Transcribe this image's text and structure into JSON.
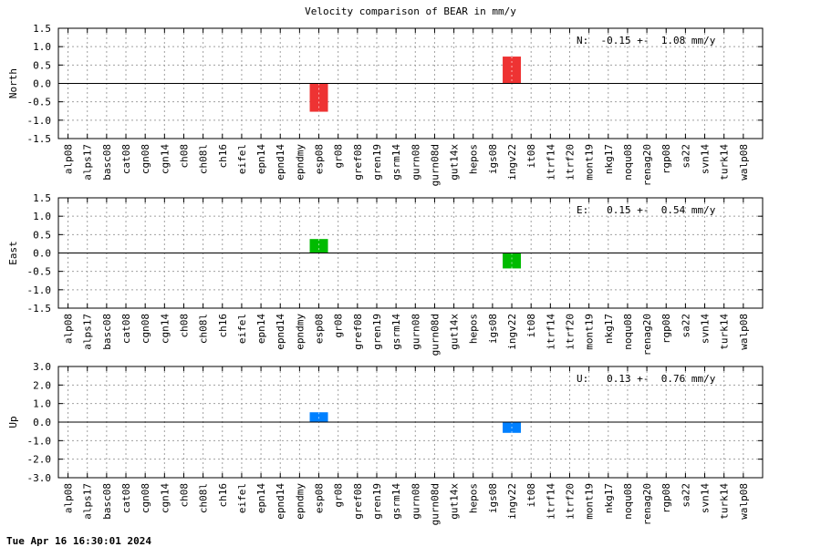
{
  "page": {
    "title": "Velocity comparison of BEAR in mm/y",
    "timestamp": "Tue Apr 16 16:30:01 2024"
  },
  "chart_data": [
    {
      "type": "bar",
      "ylabel": "North",
      "ylim": [
        -1.5,
        1.5
      ],
      "yticks": [
        "1.5",
        "1.0",
        "0.5",
        "0.0",
        "-0.5",
        "-1.0",
        "-1.5"
      ],
      "annotation": "N:  -0.15 +-  1.08 mm/y",
      "color": "#ee3333",
      "grid": true,
      "categories": [
        "alp08",
        "alps17",
        "basc08",
        "cat08",
        "cgn08",
        "cgn14",
        "ch08",
        "ch08l",
        "ch16",
        "eifel",
        "epn14",
        "epnd14",
        "epndmy",
        "esp08",
        "gr08",
        "gref08",
        "gren19",
        "gsrm14",
        "gurn08",
        "gurn08d",
        "gut14x",
        "hepos",
        "igs08",
        "ingv22",
        "it08",
        "itrf14",
        "itrf20",
        "mont19",
        "nkg17",
        "noqu08",
        "renag20",
        "rgp08",
        "sa22",
        "svn14",
        "turk14",
        "walp08"
      ],
      "values": [
        null,
        null,
        null,
        null,
        null,
        null,
        null,
        null,
        null,
        null,
        null,
        null,
        null,
        -0.77,
        null,
        null,
        null,
        null,
        null,
        null,
        null,
        null,
        null,
        0.73,
        null,
        null,
        null,
        null,
        null,
        null,
        null,
        null,
        null,
        null,
        null,
        null
      ]
    },
    {
      "type": "bar",
      "ylabel": "East",
      "ylim": [
        -1.5,
        1.5
      ],
      "yticks": [
        "1.5",
        "1.0",
        "0.5",
        "0.0",
        "-0.5",
        "-1.0",
        "-1.5"
      ],
      "annotation": "E:   0.15 +-  0.54 mm/y",
      "color": "#00bb00",
      "grid": true,
      "categories": [
        "alp08",
        "alps17",
        "basc08",
        "cat08",
        "cgn08",
        "cgn14",
        "ch08",
        "ch08l",
        "ch16",
        "eifel",
        "epn14",
        "epnd14",
        "epndmy",
        "esp08",
        "gr08",
        "gref08",
        "gren19",
        "gsrm14",
        "gurn08",
        "gurn08d",
        "gut14x",
        "hepos",
        "igs08",
        "ingv22",
        "it08",
        "itrf14",
        "itrf20",
        "mont19",
        "nkg17",
        "noqu08",
        "renag20",
        "rgp08",
        "sa22",
        "svn14",
        "turk14",
        "walp08"
      ],
      "values": [
        null,
        null,
        null,
        null,
        null,
        null,
        null,
        null,
        null,
        null,
        null,
        null,
        null,
        0.38,
        null,
        null,
        null,
        null,
        null,
        null,
        null,
        null,
        null,
        -0.42,
        null,
        null,
        null,
        null,
        null,
        null,
        null,
        null,
        null,
        null,
        null,
        null
      ]
    },
    {
      "type": "bar",
      "ylabel": "Up",
      "ylim": [
        -3.0,
        3.0
      ],
      "yticks": [
        "3.0",
        "2.0",
        "1.0",
        "0.0",
        "-1.0",
        "-2.0",
        "-3.0"
      ],
      "annotation": "U:   0.13 +-  0.76 mm/y",
      "color": "#0080ff",
      "grid": true,
      "categories": [
        "alp08",
        "alps17",
        "basc08",
        "cat08",
        "cgn08",
        "cgn14",
        "ch08",
        "ch08l",
        "ch16",
        "eifel",
        "epn14",
        "epnd14",
        "epndmy",
        "esp08",
        "gr08",
        "gref08",
        "gren19",
        "gsrm14",
        "gurn08",
        "gurn08d",
        "gut14x",
        "hepos",
        "igs08",
        "ingv22",
        "it08",
        "itrf14",
        "itrf20",
        "mont19",
        "nkg17",
        "noqu08",
        "renag20",
        "rgp08",
        "sa22",
        "svn14",
        "turk14",
        "walp08"
      ],
      "values": [
        null,
        null,
        null,
        null,
        null,
        null,
        null,
        null,
        null,
        null,
        null,
        null,
        null,
        0.53,
        null,
        null,
        null,
        null,
        null,
        null,
        null,
        null,
        null,
        -0.58,
        null,
        null,
        null,
        null,
        null,
        null,
        null,
        null,
        null,
        null,
        null,
        null
      ]
    }
  ]
}
